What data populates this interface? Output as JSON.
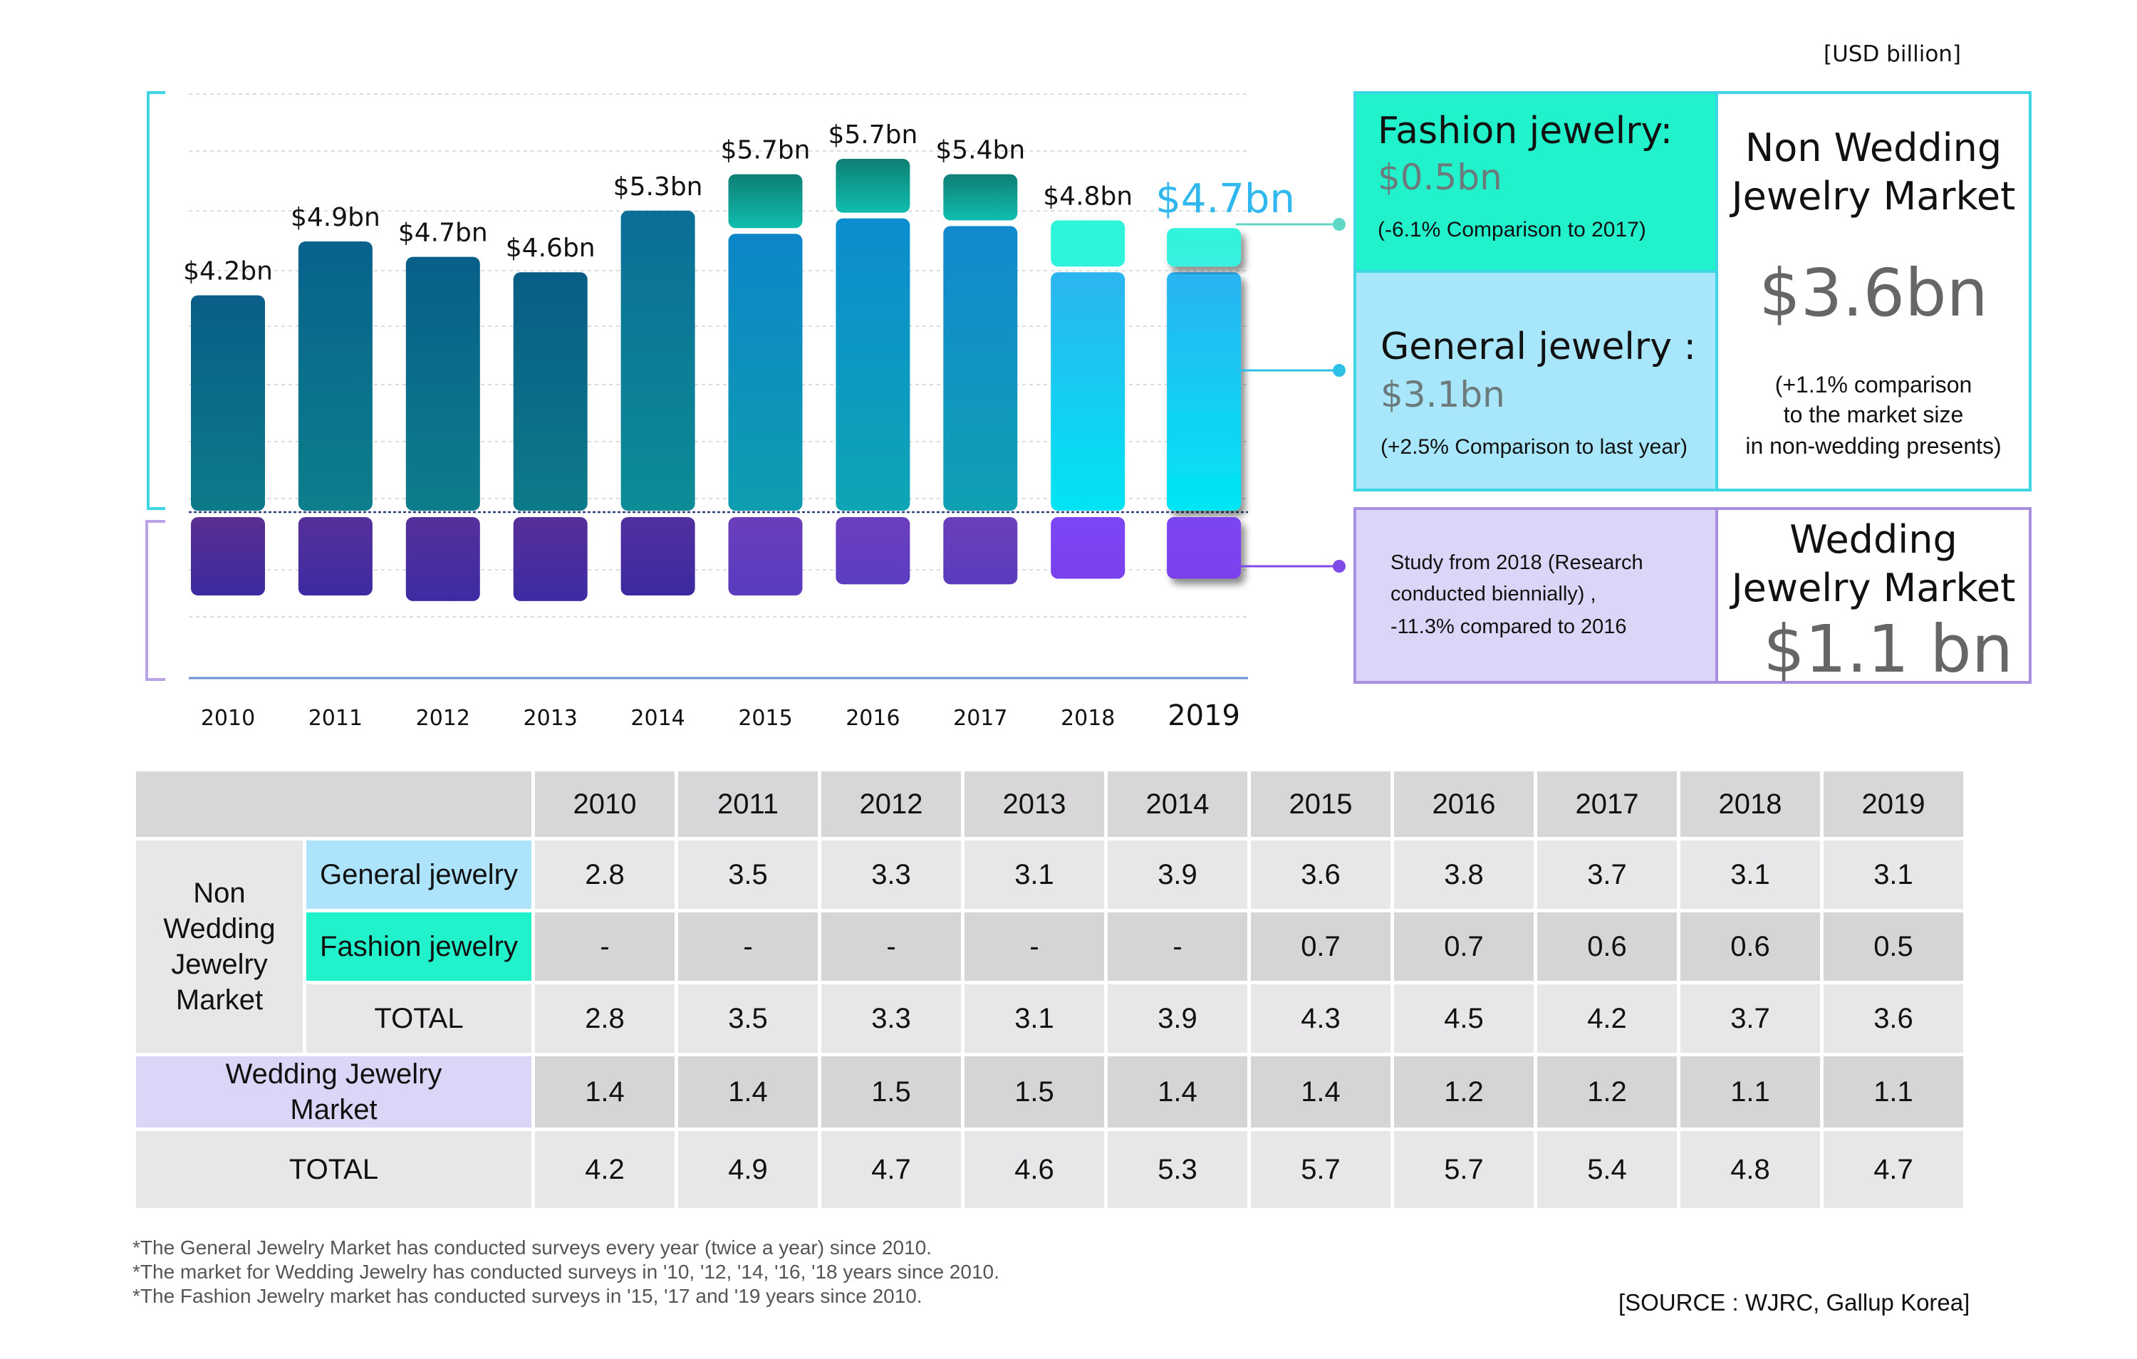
{
  "unit_label": "[USD billion]",
  "chart_data": {
    "type": "bar",
    "categories": [
      "2010",
      "2011",
      "2012",
      "2013",
      "2014",
      "2015",
      "2016",
      "2017",
      "2018",
      "2019"
    ],
    "series": [
      {
        "name": "General jewelry",
        "values": [
          2.8,
          3.5,
          3.3,
          3.1,
          3.9,
          3.6,
          3.8,
          3.7,
          3.1,
          3.1
        ]
      },
      {
        "name": "Fashion jewelry",
        "values": [
          null,
          null,
          null,
          null,
          null,
          0.7,
          0.7,
          0.6,
          0.6,
          0.5
        ]
      },
      {
        "name": "Wedding Jewelry Market",
        "values": [
          1.4,
          1.4,
          1.5,
          1.5,
          1.4,
          1.4,
          1.2,
          1.2,
          1.1,
          1.1
        ]
      }
    ],
    "total_labels": [
      "$4.2bn",
      "$4.9bn",
      "$4.7bn",
      "$4.6bn",
      "$5.3bn",
      "$5.7bn",
      "$5.7bn",
      "$5.4bn",
      "$4.8bn",
      "$4.7bn"
    ],
    "totals": [
      4.2,
      4.9,
      4.7,
      4.6,
      5.3,
      5.7,
      5.7,
      5.4,
      4.8,
      4.7
    ],
    "colors": {
      "general_top": [
        "#0a5e88",
        "#08628c",
        "#085f8a",
        "#095d86",
        "#0b6e97",
        "#0d86c8",
        "#0b8dcf",
        "#1289cf",
        "#2cb4f0",
        "#2ab2f2"
      ],
      "general_bottom": [
        "#0c7b89",
        "#0c7f8c",
        "#0c7d8a",
        "#0c7b89",
        "#0d8c96",
        "#0d9db0",
        "#0ea5b5",
        "#0fa0b3",
        "#00e4f2",
        "#00e6f4"
      ],
      "fashion_top": "#0f7f74",
      "fashion_bottom": "#10bdb0",
      "fashion_2018": "#2ff4dc",
      "wedding_top": [
        "#5a2f91",
        "#55309a",
        "#55309a",
        "#562f98",
        "#512fa0",
        "#6a3ebd",
        "#6b3fbf",
        "#6a3fbc",
        "#7d46f4",
        "#7c45f2"
      ],
      "wedding_bottom": [
        "#3c2aa0",
        "#3d2aa2",
        "#3e2ba4",
        "#3e2ba4",
        "#3c29a0",
        "#5a3cbe",
        "#5c3dc0",
        "#5b3cbd",
        "#7a41ee",
        "#7a41ee"
      ],
      "highlight_label": "#2fb7ee"
    }
  },
  "panels": {
    "fashion": {
      "title": "Fashion jewelry:",
      "value": "$0.5bn",
      "note": "(-6.1% Comparison to 2017)"
    },
    "general": {
      "title": "General jewelry :",
      "value": "$3.1bn",
      "note": "(+2.5% Comparison to last year)"
    },
    "nonwedding": {
      "title_1": "Non Wedding",
      "title_2": "Jewelry Market",
      "value": "$3.6bn",
      "note_1": "(+1.1% comparison",
      "note_2": "to the market size",
      "note_3": "in non-wedding presents)"
    },
    "study": {
      "line_1": "Study from 2018 (Research",
      "line_2": "conducted biennially) ,",
      "line_3": "-11.3% compared to 2016"
    },
    "wedding": {
      "title_1": "Wedding",
      "title_2": "Jewelry Market",
      "value": "$1.1 bn"
    }
  },
  "table": {
    "years": [
      "2010",
      "2011",
      "2012",
      "2013",
      "2014",
      "2015",
      "2016",
      "2017",
      "2018",
      "2019"
    ],
    "group_label": "Non\nWedding\nJewelry\nMarket",
    "rows": [
      {
        "label": "General jewelry",
        "values": [
          "2.8",
          "3.5",
          "3.3",
          "3.1",
          "3.9",
          "3.6",
          "3.8",
          "3.7",
          "3.1",
          "3.1"
        ]
      },
      {
        "label": "Fashion jewelry",
        "values": [
          "-",
          "-",
          "-",
          "-",
          "-",
          "0.7",
          "0.7",
          "0.6",
          "0.6",
          "0.5"
        ]
      },
      {
        "label": "TOTAL",
        "values": [
          "2.8",
          "3.5",
          "3.3",
          "3.1",
          "3.9",
          "4.3",
          "4.5",
          "4.2",
          "3.7",
          "3.6"
        ]
      }
    ],
    "wedding_row": {
      "label": "Wedding Jewelry\nMarket",
      "values": [
        "1.4",
        "1.4",
        "1.5",
        "1.5",
        "1.4",
        "1.4",
        "1.2",
        "1.2",
        "1.1",
        "1.1"
      ]
    },
    "total_row": {
      "label": "TOTAL",
      "values": [
        "4.2",
        "4.9",
        "4.7",
        "4.6",
        "5.3",
        "5.7",
        "5.7",
        "5.4",
        "4.8",
        "4.7"
      ]
    }
  },
  "footnotes": [
    "*The General Jewelry Market has conducted surveys every year (twice a year) since 2010.",
    "*The market for Wedding Jewelry has conducted surveys in '10, '12, '14, '16, '18 years since 2010.",
    "*The Fashion Jewelry market has conducted surveys in '15, '17 and '19 years since 2010."
  ],
  "source": "[SOURCE : WJRC, Gallup Korea]"
}
